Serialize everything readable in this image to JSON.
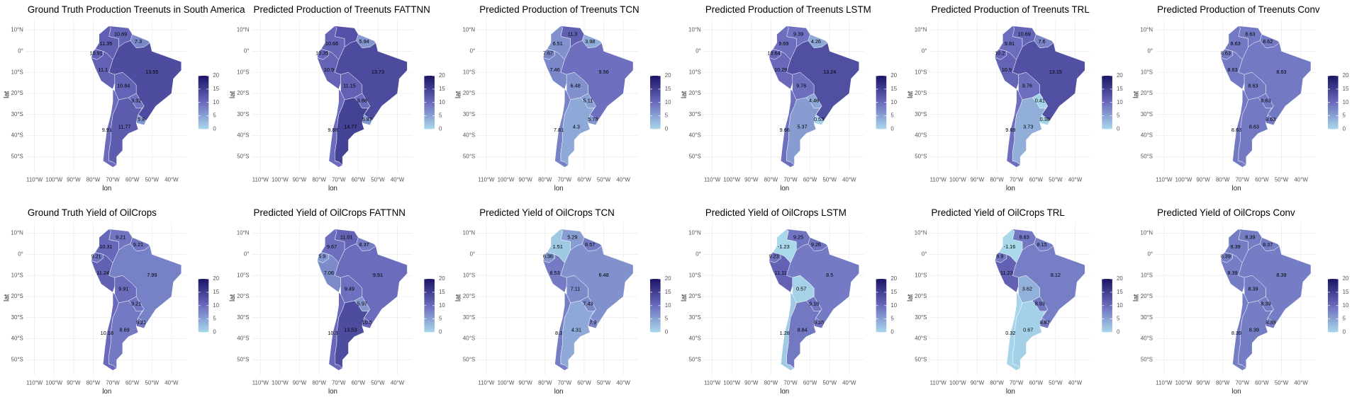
{
  "xlabel": "lon",
  "ylabel": "lat",
  "xticks": [
    {
      "value": -110,
      "label": "110°W"
    },
    {
      "value": -100,
      "label": "100°W"
    },
    {
      "value": -90,
      "label": "90°W"
    },
    {
      "value": -80,
      "label": "80°W"
    },
    {
      "value": -70,
      "label": "70°W"
    },
    {
      "value": -60,
      "label": "60°W"
    },
    {
      "value": -50,
      "label": "50°W"
    },
    {
      "value": -40,
      "label": "40°W"
    }
  ],
  "yticks": [
    {
      "value": 10,
      "label": "10°N"
    },
    {
      "value": 0,
      "label": "0°"
    },
    {
      "value": -10,
      "label": "10°S"
    },
    {
      "value": -20,
      "label": "20°S"
    },
    {
      "value": -30,
      "label": "30°S"
    },
    {
      "value": -40,
      "label": "40°S"
    },
    {
      "value": -50,
      "label": "50°S"
    }
  ],
  "colorbar": {
    "lim": [
      0,
      20
    ],
    "ticks": [
      0,
      5,
      10,
      15,
      20
    ],
    "colors": [
      "#a8d8ea",
      "#6b6bbd",
      "#1a1466"
    ]
  },
  "panels": [
    {
      "title": "Ground Truth Production Treenuts in South America",
      "values": [
        10.69,
        7.3,
        11.35,
        10.91,
        11.1,
        13.55,
        10.84,
        9.32,
        5.8,
        11.77,
        9.91
      ]
    },
    {
      "title": "Predicted Production of Treenuts FATTNN",
      "values": [
        null,
        5.94,
        10.66,
        10.35,
        10.9,
        13.73,
        11.15,
        9.88,
        5.87,
        14.77,
        9.88
      ]
    },
    {
      "title": "Predicted Production of Treenuts TCN",
      "values": [
        11.3,
        3.98,
        6.51,
        7.67,
        7.46,
        9.56,
        6.48,
        5.11,
        5.78,
        4.3,
        7.81
      ]
    },
    {
      "title": "Predicted Production of Treenuts LSTM",
      "values": [
        9.39,
        4.26,
        9.69,
        10.64,
        10.29,
        13.24,
        9.76,
        4.46,
        0.53,
        5.37,
        9.66
      ]
    },
    {
      "title": "Predicted Production of Treenuts TRL",
      "values": [
        10.69,
        7.6,
        9.81,
        10.2,
        10.9,
        13.15,
        9.76,
        0.41,
        0.38,
        3.73,
        9.69
      ]
    },
    {
      "title": "Predicted Production of Treenuts Conv",
      "values": [
        8.63,
        8.62,
        8.63,
        8.63,
        8.63,
        8.63,
        8.63,
        8.63,
        8.63,
        8.63,
        8.63
      ]
    },
    {
      "title": "Ground Truth Yield of OilCrops",
      "values": [
        9.21,
        9.21,
        10.31,
        9.21,
        11.24,
        7.99,
        9.91,
        9.21,
        9.21,
        8.69,
        10.18
      ]
    },
    {
      "title": "Predicted Yield of OilCrops FATTNN",
      "values": [
        11.01,
        8.37,
        9.67,
        5.9,
        7.06,
        9.91,
        9.49,
        5.97,
        10.5,
        13.53,
        10.3
      ]
    },
    {
      "title": "Predicted Yield of OilCrops TCN",
      "values": [
        5.29,
        8.57,
        1.51,
        6.36,
        8.53,
        6.48,
        7.11,
        7.43,
        7.9,
        4.31,
        8.3
      ]
    },
    {
      "title": "Predicted Yield of OilCrops LSTM",
      "values": [
        9.25,
        9.26,
        -1.23,
        9.23,
        11.11,
        8.5,
        0.57,
        9.18,
        9.26,
        8.84,
        1.28
      ]
    },
    {
      "title": "Predicted Yield of OilCrops TRL",
      "values": [
        8.83,
        8.15,
        -1.16,
        8.9,
        11.23,
        8.12,
        3.62,
        8.93,
        8.87,
        0.67,
        0.32
      ]
    },
    {
      "title": "Predicted Yield of OilCrops Conv",
      "values": [
        8.39,
        8.37,
        8.39,
        8.39,
        8.39,
        8.39,
        8.39,
        8.39,
        8.39,
        8.39,
        8.39
      ]
    }
  ]
}
